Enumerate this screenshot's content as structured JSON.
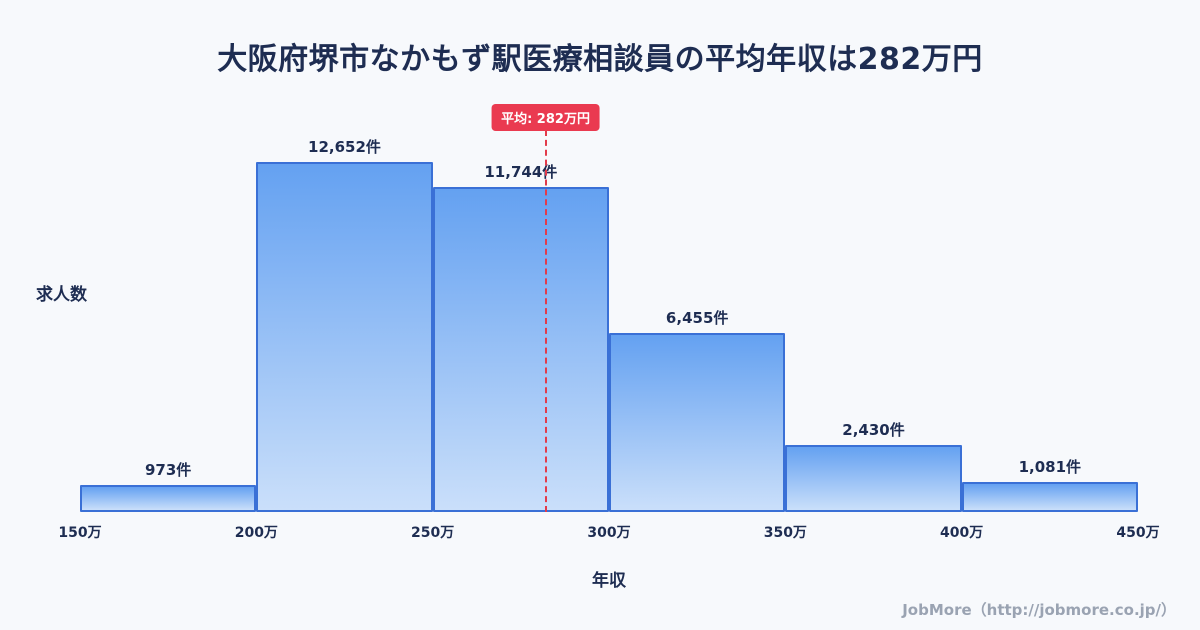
{
  "page": {
    "title": "大阪府堺市なかもず駅医療相談員の平均年収は282万円",
    "footer_credit": "JobMore（http://jobmore.co.jp/）"
  },
  "chart_data": {
    "type": "bar",
    "title": "大阪府堺市なかもず駅医療相談員の平均年収は282万円",
    "xlabel": "年収",
    "ylabel": "求人数",
    "x_tick_labels": [
      "150万",
      "200万",
      "250万",
      "300万",
      "350万",
      "400万",
      "450万"
    ],
    "bin_edges_man_yen": [
      150,
      200,
      250,
      300,
      350,
      400,
      450
    ],
    "values": [
      973,
      12652,
      11744,
      6455,
      2430,
      1081
    ],
    "value_labels": [
      "973件",
      "12,652件",
      "11,744件",
      "6,455件",
      "2,430件",
      "1,081件"
    ],
    "ylim": [
      0,
      13000
    ],
    "x_range": [
      150,
      450
    ],
    "average": {
      "value_man_yen": 282,
      "label": "平均: 282万円"
    },
    "grid": false,
    "legend_position": "none",
    "colors": {
      "background": "#f7f9fc",
      "bar_fill_top": "#64a1f1",
      "bar_fill_bottom": "#cadffa",
      "bar_border": "#3a70d6",
      "average_line": "#e23b4b",
      "average_badge_bg": "#ea3a50",
      "average_badge_text": "#ffffff",
      "title_text": "#1e2d52",
      "axis_text": "#1e2d52",
      "footer_text": "#9aa3b2"
    }
  }
}
